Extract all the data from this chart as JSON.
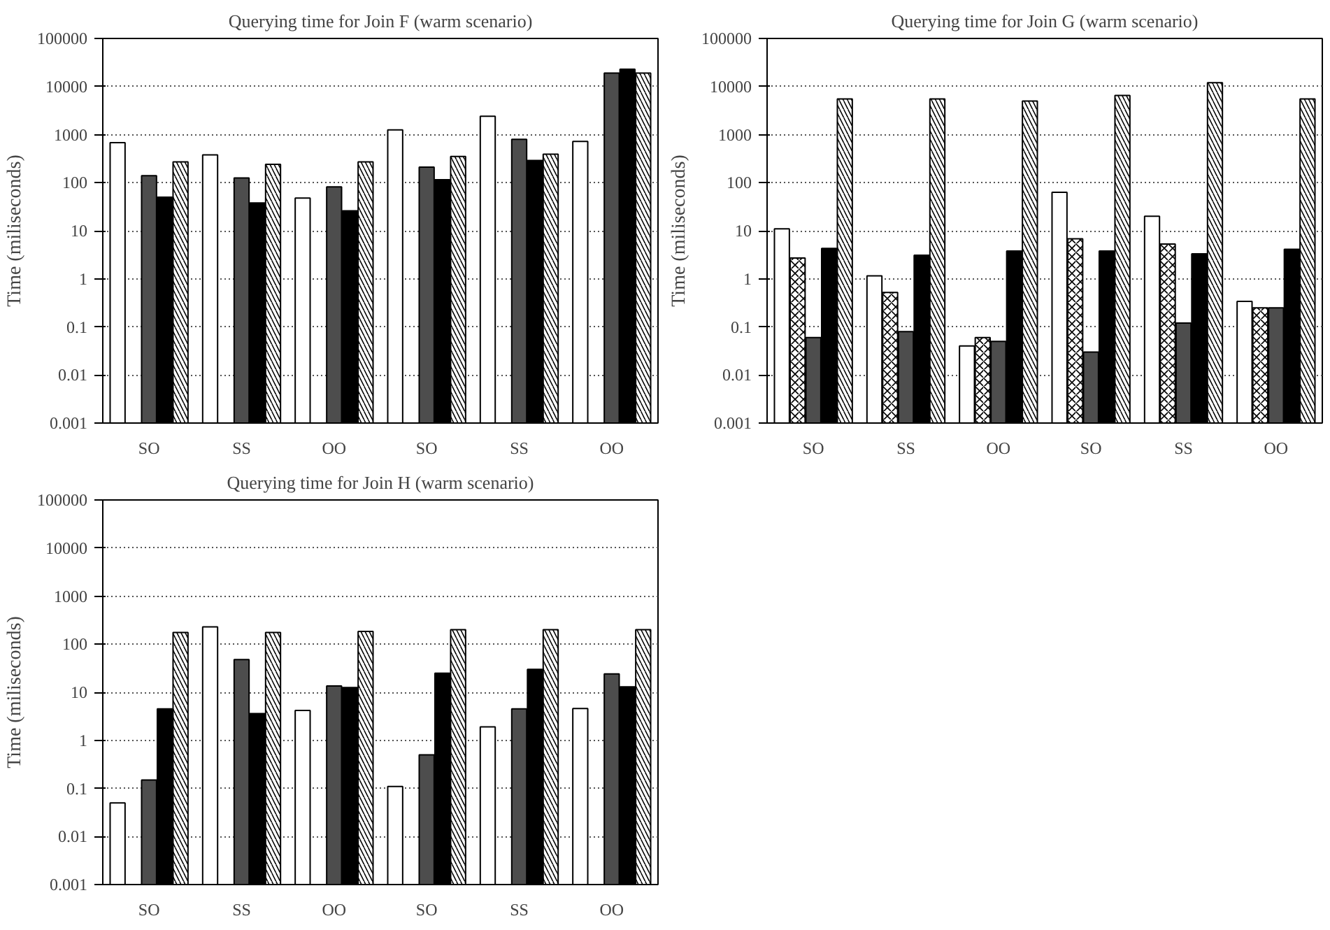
{
  "chart_data": [
    {
      "type": "bar",
      "title": "Querying time for Join F (warm scenario)",
      "ylabel": "Time (miliseconds)",
      "categories": [
        "SO",
        "SS",
        "OO",
        "SO",
        "SS",
        "OO"
      ],
      "log": "y",
      "ylim": [
        0.001,
        100000
      ],
      "yticks": [
        0.001,
        0.01,
        0.1,
        1,
        10,
        100,
        1000,
        10000,
        100000
      ],
      "grid": "y",
      "series": [
        {
          "color": "#ffffff",
          "values": [
            680,
            380,
            48,
            1250,
            2400,
            720
          ]
        },
        {
          "values": [
            null,
            null,
            null,
            null,
            null,
            null
          ]
        },
        {
          "color": "#4d4d4d",
          "values": [
            140,
            125,
            82,
            210,
            800,
            19000
          ]
        },
        {
          "color": "#000000",
          "values": [
            50,
            38,
            26,
            115,
            290,
            23000
          ]
        },
        {
          "color": "#ffffff",
          "values": [
            270,
            240,
            270,
            350,
            390,
            19000
          ]
        }
      ]
    },
    {
      "type": "bar",
      "title": "Querying time for Join G (warm scenario)",
      "ylabel": "Time (miliseconds)",
      "categories": [
        "SO",
        "SS",
        "OO",
        "SO",
        "SS",
        "OO"
      ],
      "log": "y",
      "ylim": [
        0.001,
        100000
      ],
      "yticks": [
        0.001,
        0.01,
        0.1,
        1,
        10,
        100,
        1000,
        10000,
        100000
      ],
      "grid": "y",
      "series": [
        {
          "color": "#ffffff",
          "values": [
            11,
            1.15,
            0.04,
            63,
            20,
            0.34
          ]
        },
        {
          "color": "#ffffff",
          "values": [
            2.7,
            0.52,
            0.06,
            6.8,
            5.3,
            0.25
          ]
        },
        {
          "color": "#4d4d4d",
          "values": [
            0.06,
            0.08,
            0.05,
            0.03,
            0.12,
            0.25
          ]
        },
        {
          "color": "#000000",
          "values": [
            4.3,
            3.1,
            3.8,
            3.8,
            3.3,
            4.1
          ]
        },
        {
          "color": "#ffffff",
          "values": [
            5500,
            5500,
            5000,
            6500,
            12000,
            5500
          ]
        }
      ]
    },
    {
      "type": "bar",
      "title": "Querying time for Join H (warm scenario)",
      "ylabel": "Time (miliseconds)",
      "categories": [
        "SO",
        "SS",
        "OO",
        "SO",
        "SS",
        "OO"
      ],
      "log": "y",
      "ylim": [
        0.001,
        100000
      ],
      "yticks": [
        0.001,
        0.01,
        0.1,
        1,
        10,
        100,
        1000,
        10000,
        100000
      ],
      "grid": "y",
      "series": [
        {
          "color": "#ffffff",
          "values": [
            0.05,
            230,
            4.2,
            0.11,
            1.9,
            4.6
          ]
        },
        {
          "values": [
            null,
            null,
            null,
            null,
            null,
            null
          ]
        },
        {
          "color": "#4d4d4d",
          "values": [
            0.15,
            48,
            13.5,
            0.5,
            4.5,
            24
          ]
        },
        {
          "color": "#000000",
          "values": [
            4.5,
            3.6,
            12.5,
            25,
            30,
            13
          ]
        },
        {
          "color": "#ffffff",
          "values": [
            175,
            175,
            185,
            200,
            200,
            200
          ]
        }
      ]
    }
  ]
}
